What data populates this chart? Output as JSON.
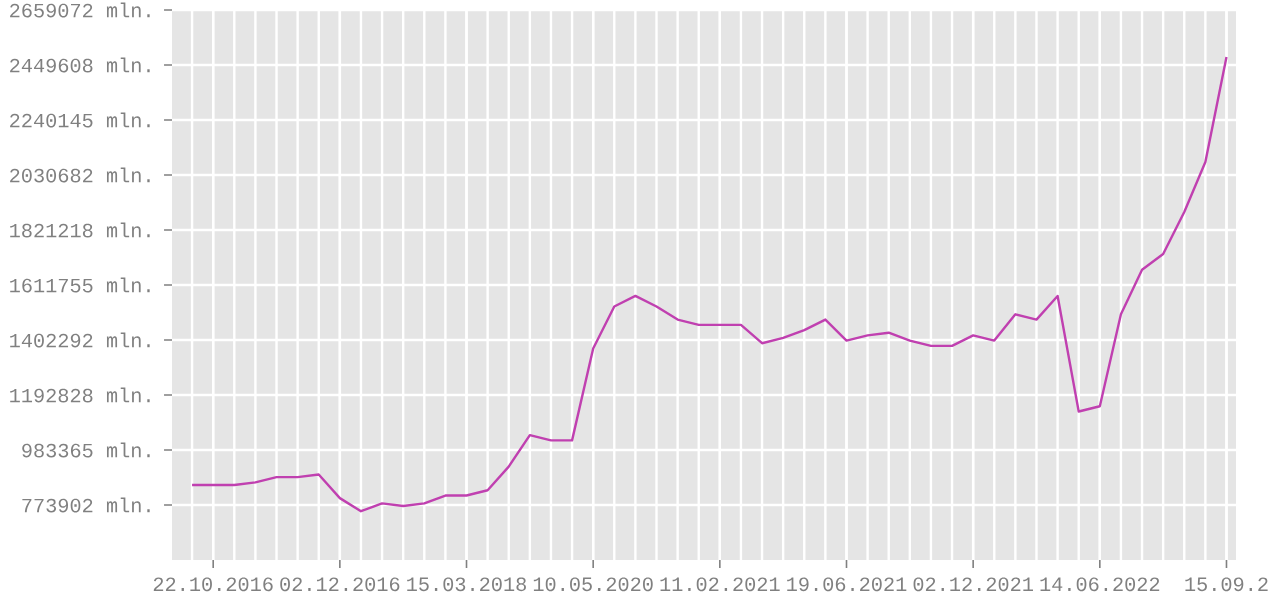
{
  "chart_data": {
    "type": "line",
    "categories": [
      null,
      "22.10.2016",
      null,
      null,
      null,
      null,
      null,
      "02.12.2016",
      null,
      null,
      null,
      null,
      null,
      "15.03.2018",
      null,
      null,
      null,
      null,
      null,
      "10.05.2020",
      null,
      null,
      null,
      null,
      null,
      "11.02.2021",
      null,
      null,
      null,
      null,
      null,
      "19.06.2021",
      null,
      null,
      null,
      null,
      null,
      "02.12.2021",
      null,
      null,
      null,
      null,
      null,
      "14.06.2022",
      null,
      null,
      null,
      null,
      null,
      "15.09.2"
    ],
    "series": [
      {
        "color": "#c040b0",
        "values": [
          850000,
          850000,
          850000,
          860000,
          880000,
          880000,
          890000,
          800000,
          750000,
          780000,
          770000,
          780000,
          810000,
          810000,
          830000,
          920000,
          1040000,
          1020000,
          1020000,
          1370000,
          1530000,
          1570000,
          1530000,
          1480000,
          1460000,
          1460000,
          1460000,
          1390000,
          1410000,
          1440000,
          1480000,
          1400000,
          1420000,
          1430000,
          1400000,
          1380000,
          1380000,
          1420000,
          1400000,
          1500000,
          1480000,
          1570000,
          1130000,
          1150000,
          1500000,
          1670000,
          1730000,
          1890000,
          2080000,
          2480000
        ]
      }
    ],
    "ylim": [
      564439,
      2659072
    ],
    "yticks": [
      {
        "value": 773902,
        "label": "773902 mln."
      },
      {
        "value": 983365,
        "label": "983365 mln."
      },
      {
        "value": 1192828,
        "label": "1192828 mln."
      },
      {
        "value": 1402292,
        "label": "1402292 mln."
      },
      {
        "value": 1611755,
        "label": "1611755 mln."
      },
      {
        "value": 1821218,
        "label": "1821218 mln."
      },
      {
        "value": 2030682,
        "label": "2030682 mln."
      },
      {
        "value": 2240145,
        "label": "2240145 mln."
      },
      {
        "value": 2449608,
        "label": "2449608 mln."
      },
      {
        "value": 2659072,
        "label": "2659072 mln."
      }
    ],
    "grid": true
  }
}
